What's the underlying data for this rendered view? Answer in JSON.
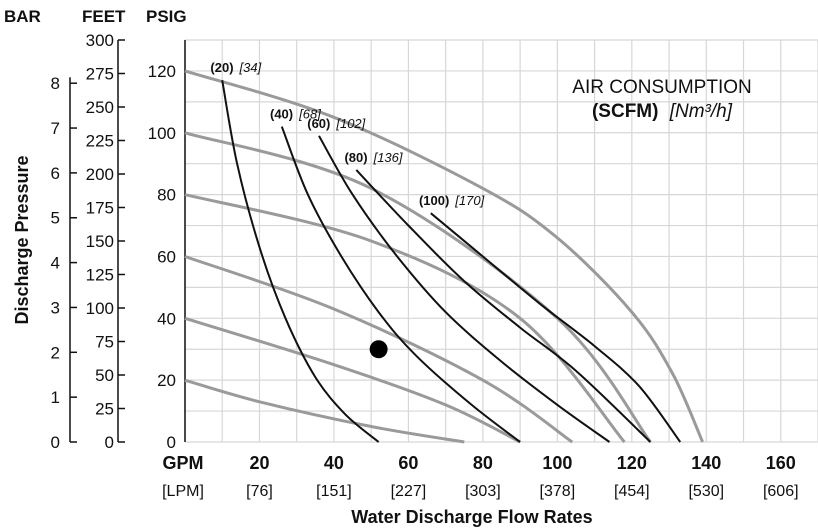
{
  "chart_data": {
    "type": "line",
    "axes": {
      "left_headers": {
        "bar": "BAR",
        "feet": "FEET",
        "psig": "PSIG"
      },
      "psig": {
        "range": [
          0,
          130
        ],
        "ticks": [
          "0",
          "20",
          "40",
          "60",
          "80",
          "100",
          "120"
        ]
      },
      "bar_ticks": [
        "0",
        "1",
        "2",
        "3",
        "4",
        "5",
        "6",
        "7",
        "8"
      ],
      "feet_ticks": [
        "0",
        "25",
        "50",
        "75",
        "100",
        "125",
        "150",
        "175",
        "200",
        "225",
        "250",
        "275",
        "300"
      ],
      "gpm": {
        "label": "GPM",
        "range": [
          0,
          170
        ],
        "ticks": [
          "20",
          "40",
          "60",
          "80",
          "100",
          "120",
          "140",
          "160"
        ]
      },
      "lpm": {
        "label": "[LPM]",
        "ticks": [
          "[76]",
          "[151]",
          "[227]",
          "[303]",
          "[378]",
          "[454]",
          "[530]",
          "[606]"
        ]
      },
      "xlabel": "Water Discharge Flow Rates",
      "ylabel": "Discharge Pressure",
      "grid": true
    },
    "legend": {
      "line1": "AIR CONSUMPTION",
      "line2_bold": "(SCFM)",
      "line2_italic": "[Nm³/h]"
    },
    "performance_curves": [
      {
        "x": [
          0,
          40,
          80,
          100,
          120,
          131,
          139
        ],
        "y": [
          120,
          105,
          82,
          66,
          42,
          22,
          0
        ]
      },
      {
        "x": [
          0,
          50,
          100,
          125
        ],
        "y": [
          100,
          82,
          40,
          0
        ]
      },
      {
        "x": [
          0,
          50,
          90,
          118
        ],
        "y": [
          80,
          65,
          40,
          0
        ]
      },
      {
        "x": [
          0,
          40,
          80,
          104
        ],
        "y": [
          60,
          43,
          20,
          0
        ]
      },
      {
        "x": [
          0,
          40,
          70,
          90
        ],
        "y": [
          40,
          25,
          12,
          0
        ]
      },
      {
        "x": [
          0,
          20,
          50,
          75
        ],
        "y": [
          20,
          13,
          5,
          0
        ]
      }
    ],
    "air_consumption_curves": [
      {
        "scfm": "(20)",
        "nm3h": "[34]",
        "x": [
          10,
          14,
          20,
          27,
          35,
          43,
          52
        ],
        "y": [
          117,
          90,
          63,
          40,
          21,
          9,
          0
        ]
      },
      {
        "scfm": "(40)",
        "nm3h": "[68]",
        "x": [
          26,
          33,
          42,
          52,
          62,
          77,
          90
        ],
        "y": [
          102,
          80,
          60,
          42,
          28,
          12,
          0
        ]
      },
      {
        "scfm": "(60)",
        "nm3h": "[102]",
        "x": [
          36,
          45,
          57,
          70,
          85,
          100,
          114
        ],
        "y": [
          99,
          80,
          60,
          42,
          26,
          12,
          0
        ]
      },
      {
        "scfm": "(80)",
        "nm3h": "[136]",
        "x": [
          46,
          60,
          75,
          90,
          105,
          125
        ],
        "y": [
          88,
          70,
          52,
          37,
          23,
          0
        ]
      },
      {
        "scfm": "(100)",
        "nm3h": "[170]",
        "x": [
          66,
          80,
          95,
          110,
          122,
          133
        ],
        "y": [
          74,
          60,
          45,
          31,
          18,
          0
        ]
      }
    ],
    "operating_point": {
      "x": 52,
      "y": 30
    }
  }
}
